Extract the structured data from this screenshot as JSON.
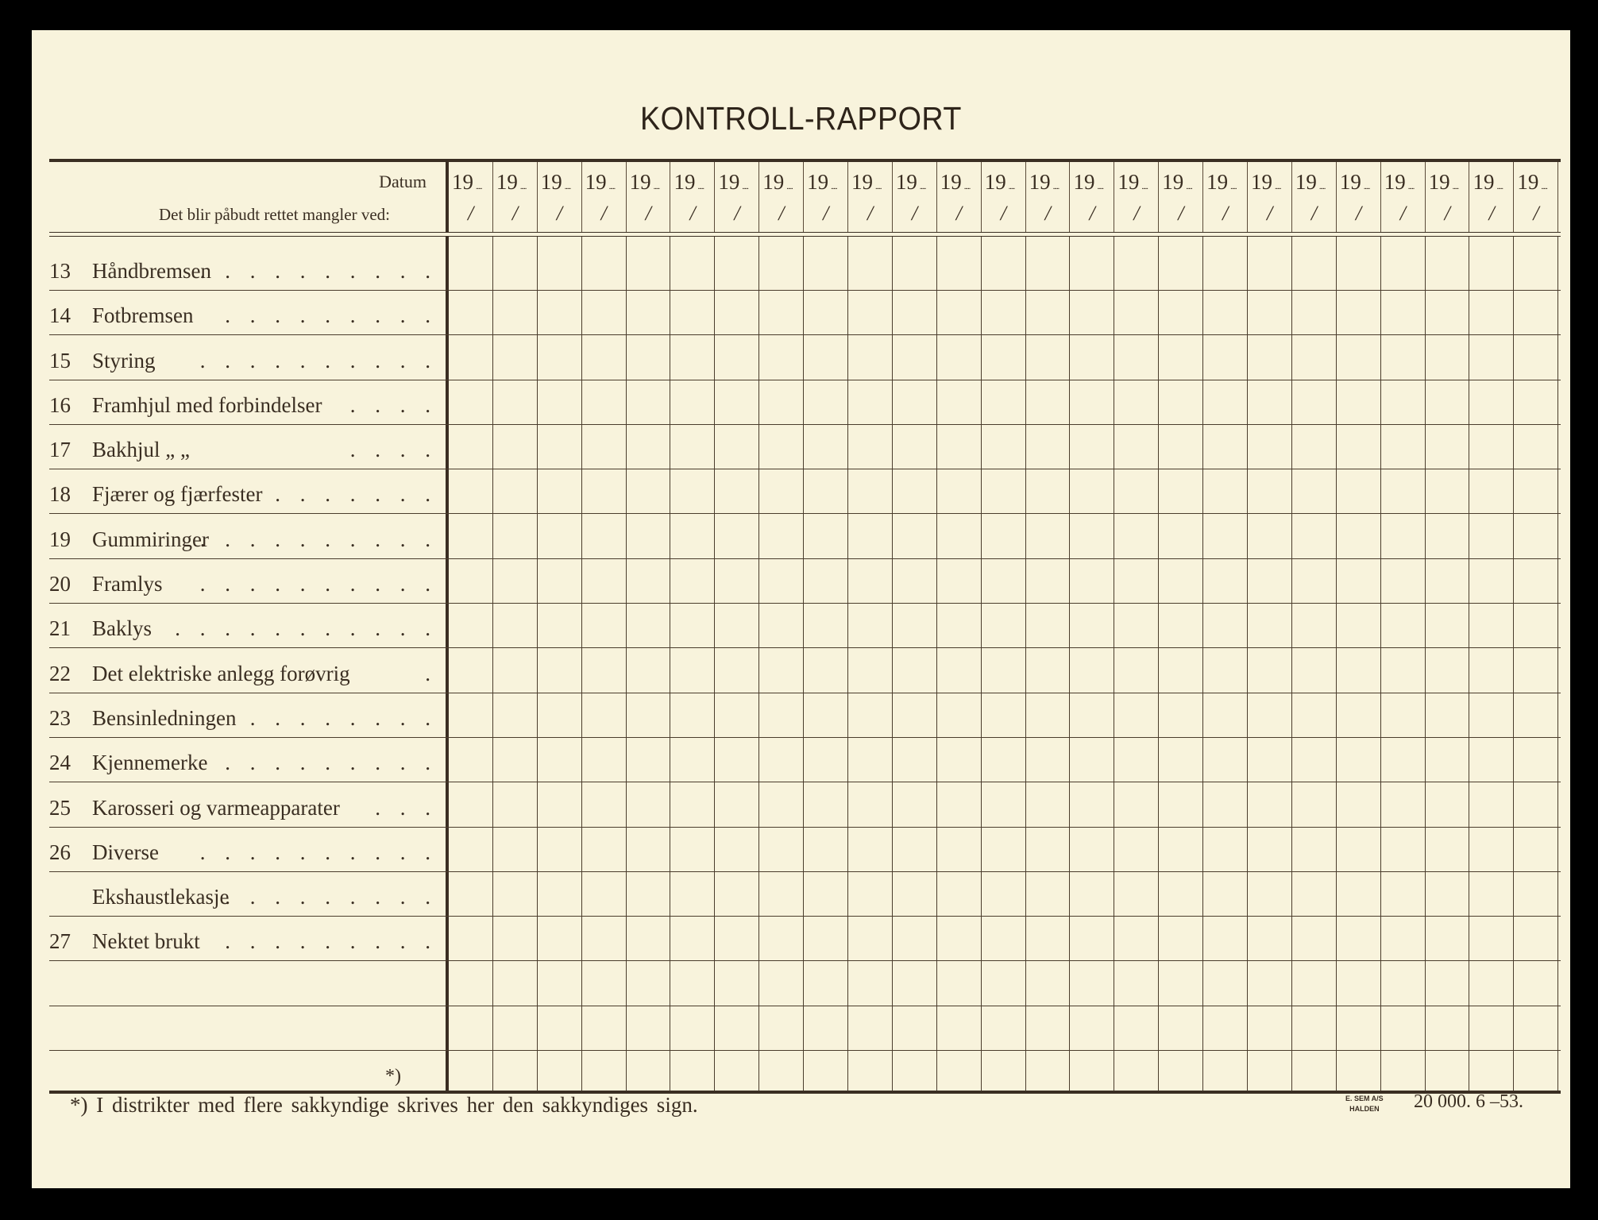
{
  "title": "KONTROLL-RAPPORT",
  "header": {
    "datum_label": "Datum",
    "mangler_label": "Det blir påbudt rettet mangler ved:",
    "date_prefix": "19",
    "date_slash": "/",
    "date_column_count": 25
  },
  "rows": [
    {
      "num": "13",
      "label": "Håndbremsen",
      "dots": ". . . . . . . . . ."
    },
    {
      "num": "14",
      "label": "Fotbremsen",
      "dots": ". . . . . . . . ."
    },
    {
      "num": "15",
      "label": "Styring",
      "dots": ". . . . . . . . . ."
    },
    {
      "num": "16",
      "label": "Framhjul med forbindelser",
      "dots": ". . . ."
    },
    {
      "num": "17",
      "label": "Bakhjul    „      „",
      "dots": ". . . ."
    },
    {
      "num": "18",
      "label": "Fjærer og fjærfester",
      "dots": ". . . . . . ."
    },
    {
      "num": "19",
      "label": "Gummiringer",
      "dots": ". . . . . . . . . ."
    },
    {
      "num": "20",
      "label": "Framlys",
      "dots": ". . . .      . . . . . ."
    },
    {
      "num": "21",
      "label": "Baklys",
      "dots": ". . . .   . . . . . . ."
    },
    {
      "num": "22",
      "label": "Det elektriske anlegg forøvrig",
      "dots": "."
    },
    {
      "num": "23",
      "label": "Bensinledningen",
      "dots": ". . . . . . . ."
    },
    {
      "num": "24",
      "label": "Kjennemerke",
      "dots": ". . . . . . . . ."
    },
    {
      "num": "25",
      "label": "Karosseri og varmeapparater",
      "dots": ". . ."
    },
    {
      "num": "26",
      "label": "Diverse",
      "dots": ". . . . . . . . . ."
    },
    {
      "num": "",
      "label": "Ekshaustlekasje",
      "dots": ". . . . . . . . ."
    },
    {
      "num": "27",
      "label": "Nektet brukt",
      "dots": ". . . . . . . . ."
    },
    {
      "num": "",
      "label": "",
      "dots": ""
    },
    {
      "num": "",
      "label": "",
      "dots": ""
    },
    {
      "num": "",
      "label": "",
      "dots": "",
      "star": "*)"
    }
  ],
  "footnote": "*)  I distrikter med flere sakkyndige skrives her den sakkyndiges sign.",
  "printer": {
    "line1": "E. SEM A/S",
    "line2": "HALDEN"
  },
  "edition": "20 000.   6 –53."
}
